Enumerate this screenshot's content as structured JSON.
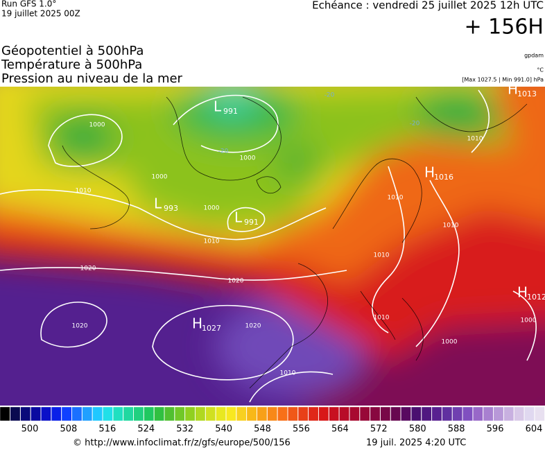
{
  "header": {
    "run": "Run GFS 1.0°",
    "run_date": "19 juillet 2025 00Z",
    "echeance": "Echéance : vendredi 25 juillet 2025 12h UTC",
    "lead": "+ 156H"
  },
  "titles": [
    "Géopotentiel à 500hPa",
    "Température à 500hPa",
    "Pression au niveau de la mer"
  ],
  "units": {
    "geopotential": "gpdam",
    "temperature": "°C",
    "pressure": "[Max 1027.5 | Min 991.0] hPa"
  },
  "map": {
    "centers": [
      {
        "type": "L",
        "value": "991"
      },
      {
        "type": "L",
        "value": "993"
      },
      {
        "type": "L",
        "value": "991"
      },
      {
        "type": "H",
        "value": "1027"
      },
      {
        "type": "H",
        "value": "1013"
      },
      {
        "type": "H",
        "value": "1016"
      },
      {
        "type": "H",
        "value": "1012"
      }
    ],
    "isobar_labels": [
      "1000",
      "1000",
      "1000",
      "1000",
      "1010",
      "1010",
      "1010",
      "1010",
      "1010",
      "1010",
      "1010",
      "1010",
      "1020",
      "1020",
      "1020",
      "1020",
      "1000",
      "1000"
    ],
    "temperature_labels": [
      "-20",
      "-20",
      "-20"
    ]
  },
  "colorbar": {
    "ticks": [
      500,
      508,
      516,
      524,
      532,
      540,
      548,
      556,
      564,
      572,
      580,
      588,
      596,
      604
    ]
  },
  "footer": {
    "url": "© http://www.infoclimat.fr/z/gfs/europe/500/156",
    "time": "19 juil. 2025  4:20 UTC"
  }
}
